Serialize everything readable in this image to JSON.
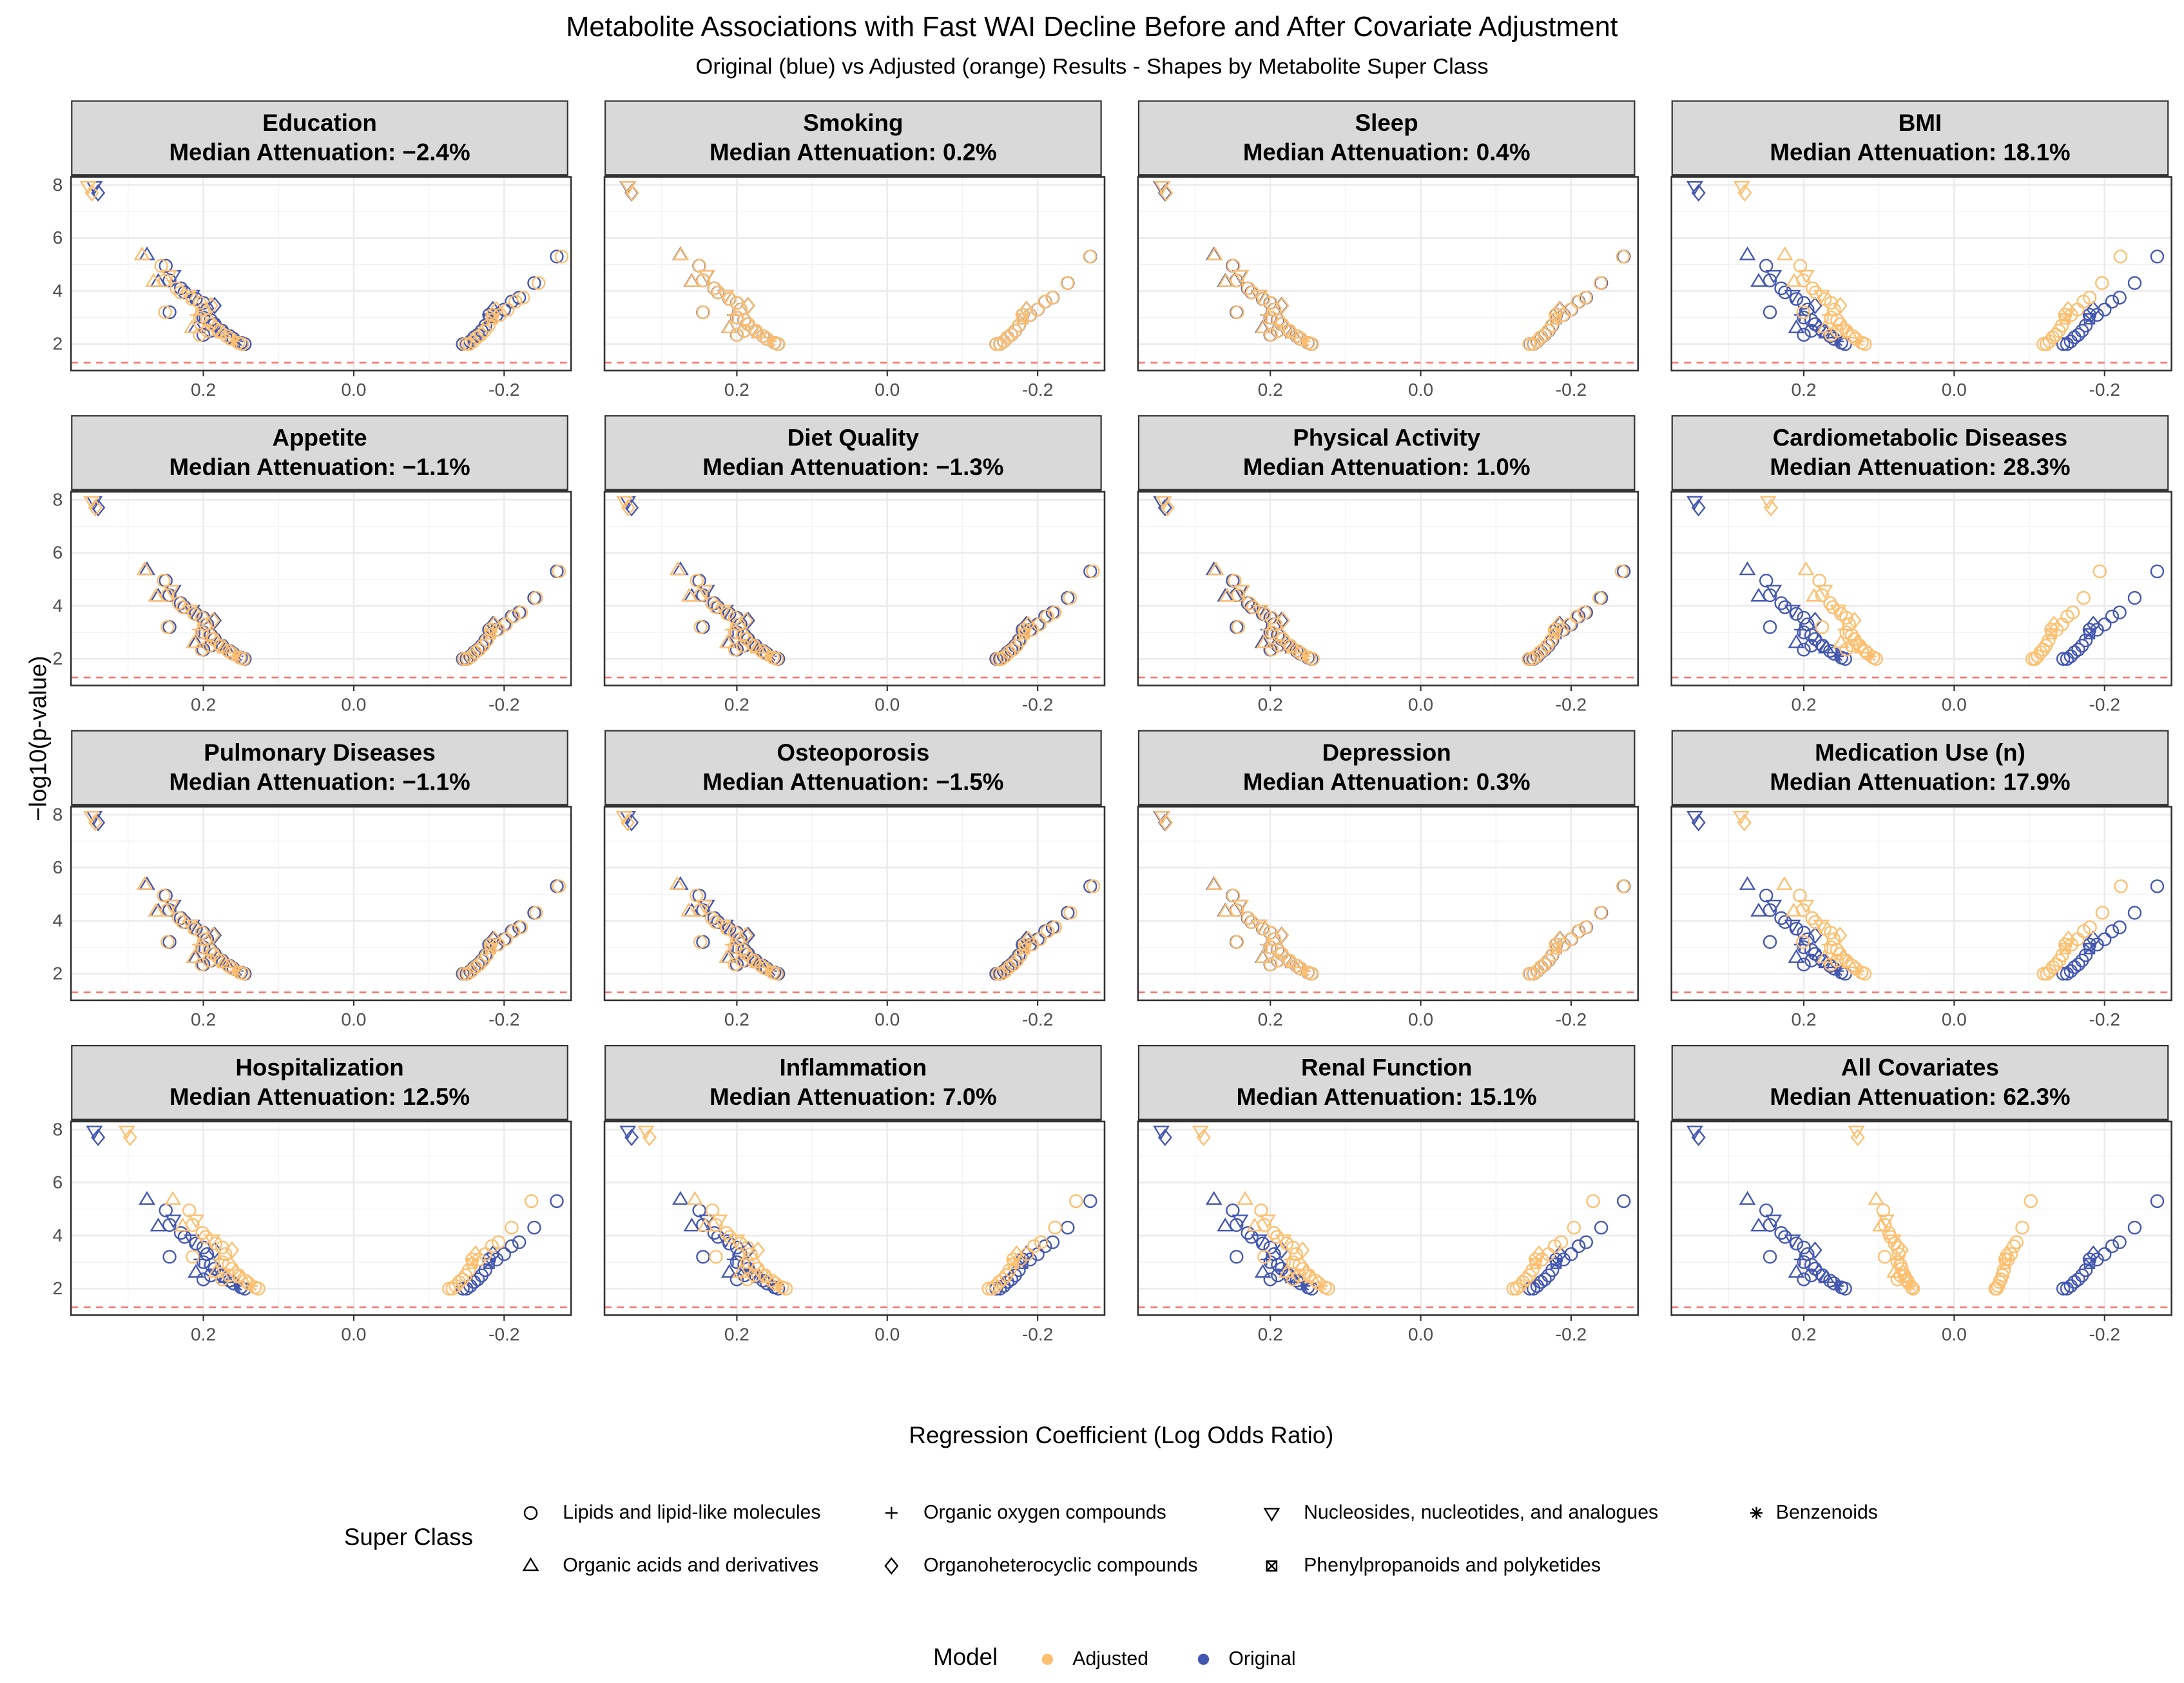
{
  "chart_data": {
    "type": "scatter",
    "title": "Metabolite Associations with Fast WAI Decline Before and After Covariate Adjustment",
    "subtitle": "Original (blue) vs Adjusted (orange) Results - Shapes by Metabolite Super Class",
    "xlabel": "Regression Coefficient (Log Odds Ratio)",
    "ylabel": "−log10(p-value)",
    "xlim": [
      0.376,
      -0.289
    ],
    "ylim": [
      1.0,
      8.3
    ],
    "x_reversed": true,
    "xticks": [
      0.2,
      0.0,
      -0.2
    ],
    "xtick_labels": [
      "0.2",
      "0.0",
      "-0.2"
    ],
    "yticks": [
      2,
      4,
      6,
      8
    ],
    "ytick_labels": [
      "2",
      "4",
      "6",
      "8"
    ],
    "threshold_line": {
      "y": 1.3,
      "color": "#f8766d",
      "style": "dashed"
    },
    "grid": true,
    "colors": {
      "Adjusted": "#fdbf6f",
      "Original": "#4457b0"
    },
    "shape_legend": {
      "title": "Super Class",
      "items": [
        {
          "label": "Lipids and lipid-like molecules",
          "shape": "c"
        },
        {
          "label": "Organic oxygen compounds",
          "shape": "p"
        },
        {
          "label": "Nucleosides, nucleotides, and analogues",
          "shape": "n"
        },
        {
          "label": "Benzenoids",
          "shape": "a"
        },
        {
          "label": "Organic acids and derivatives",
          "shape": "t"
        },
        {
          "label": "Organoheterocyclic compounds",
          "shape": "d"
        },
        {
          "label": "Phenylpropanoids and polyketides",
          "shape": "b"
        }
      ]
    },
    "color_legend": {
      "title": "Model",
      "items": [
        {
          "label": "Adjusted",
          "color": "#fdbf6f"
        },
        {
          "label": "Original",
          "color": "#4457b0"
        }
      ]
    },
    "original_points": [
      [
        0.345,
        7.95,
        "n"
      ],
      [
        0.34,
        7.7,
        "d"
      ],
      [
        0.275,
        5.35,
        "t"
      ],
      [
        0.25,
        4.95,
        "c"
      ],
      [
        0.26,
        4.35,
        "t"
      ],
      [
        0.24,
        4.6,
        "n"
      ],
      [
        0.245,
        4.4,
        "c"
      ],
      [
        0.245,
        3.2,
        "c"
      ],
      [
        0.23,
        4.1,
        "c"
      ],
      [
        0.225,
        3.95,
        "c"
      ],
      [
        0.215,
        3.85,
        "n"
      ],
      [
        0.21,
        3.7,
        "c"
      ],
      [
        0.2,
        3.55,
        "c"
      ],
      [
        0.185,
        3.45,
        "d"
      ],
      [
        0.195,
        3.3,
        "c"
      ],
      [
        0.205,
        3.1,
        "p"
      ],
      [
        0.2,
        3.0,
        "c"
      ],
      [
        0.19,
        2.9,
        "c"
      ],
      [
        0.21,
        2.6,
        "t"
      ],
      [
        0.185,
        2.75,
        "c"
      ],
      [
        0.18,
        2.6,
        "d"
      ],
      [
        0.175,
        2.5,
        "c"
      ],
      [
        0.17,
        2.4,
        "t"
      ],
      [
        0.165,
        2.3,
        "c"
      ],
      [
        0.16,
        2.2,
        "c"
      ],
      [
        0.155,
        2.1,
        "a"
      ],
      [
        0.15,
        2.05,
        "c"
      ],
      [
        0.145,
        2.0,
        "c"
      ],
      [
        0.19,
        2.5,
        "c"
      ],
      [
        0.2,
        2.35,
        "c"
      ],
      [
        -0.27,
        5.3,
        "c"
      ],
      [
        -0.24,
        4.3,
        "c"
      ],
      [
        -0.22,
        3.75,
        "c"
      ],
      [
        -0.21,
        3.6,
        "c"
      ],
      [
        -0.2,
        3.3,
        "c"
      ],
      [
        -0.185,
        3.3,
        "d"
      ],
      [
        -0.19,
        3.1,
        "c"
      ],
      [
        -0.18,
        2.95,
        "b"
      ],
      [
        -0.175,
        2.7,
        "c"
      ],
      [
        -0.17,
        2.5,
        "c"
      ],
      [
        -0.165,
        2.35,
        "c"
      ],
      [
        -0.16,
        2.25,
        "c"
      ],
      [
        -0.155,
        2.1,
        "c"
      ],
      [
        -0.15,
        2.0,
        "c"
      ],
      [
        -0.145,
        2.0,
        "c"
      ],
      [
        -0.18,
        3.1,
        "c"
      ]
    ],
    "panels": [
      {
        "title": "Education",
        "label": "Median Attenuation: −2.4%",
        "attenuation_pct": -2.4
      },
      {
        "title": "Smoking",
        "label": "Median Attenuation: 0.2%",
        "attenuation_pct": 0.2
      },
      {
        "title": "Sleep",
        "label": "Median Attenuation: 0.4%",
        "attenuation_pct": 0.4
      },
      {
        "title": "BMI",
        "label": "Median Attenuation: 18.1%",
        "attenuation_pct": 18.1
      },
      {
        "title": "Appetite",
        "label": "Median Attenuation: −1.1%",
        "attenuation_pct": -1.1
      },
      {
        "title": "Diet Quality",
        "label": "Median Attenuation: −1.3%",
        "attenuation_pct": -1.3
      },
      {
        "title": "Physical Activity",
        "label": "Median Attenuation: 1.0%",
        "attenuation_pct": 1.0
      },
      {
        "title": "Cardiometabolic Diseases",
        "label": "Median Attenuation: 28.3%",
        "attenuation_pct": 28.3
      },
      {
        "title": "Pulmonary Diseases",
        "label": "Median Attenuation: −1.1%",
        "attenuation_pct": -1.1
      },
      {
        "title": "Osteoporosis",
        "label": "Median Attenuation: −1.5%",
        "attenuation_pct": -1.5
      },
      {
        "title": "Depression",
        "label": "Median Attenuation: 0.3%",
        "attenuation_pct": 0.3
      },
      {
        "title": "Medication Use (n)",
        "label": "Median Attenuation: 17.9%",
        "attenuation_pct": 17.9
      },
      {
        "title": "Hospitalization",
        "label": "Median Attenuation: 12.5%",
        "attenuation_pct": 12.5
      },
      {
        "title": "Inflammation",
        "label": "Median Attenuation: 7.0%",
        "attenuation_pct": 7.0
      },
      {
        "title": "Renal Function",
        "label": "Median Attenuation: 15.1%",
        "attenuation_pct": 15.1
      },
      {
        "title": "All Covariates",
        "label": "Median Attenuation: 62.3%",
        "attenuation_pct": 62.3
      }
    ]
  }
}
